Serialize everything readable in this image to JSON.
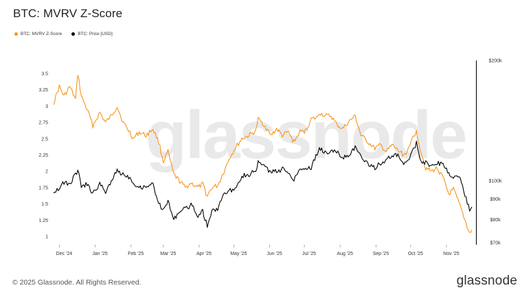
{
  "title": "BTC: MVRV Z-Score",
  "watermark": "glassnode",
  "footer": {
    "copyright": "© 2025 Glassnode. All Rights Reserved.",
    "logo": "glassnode"
  },
  "legend": [
    {
      "label": "BTC: MVRV Z-Score",
      "color": "#f7931a"
    },
    {
      "label": "BTC: Price [USD]",
      "color": "#000000"
    }
  ],
  "chart_data": {
    "type": "line",
    "title": "BTC: MVRV Z-Score",
    "x_tick_labels": [
      "Dec '24",
      "Jan '25",
      "Feb '25",
      "Mar '25",
      "Apr '25",
      "May '25",
      "Jun '25",
      "Jul '25",
      "Aug '25",
      "Sep '25",
      "Oct '25",
      "Nov '25"
    ],
    "y_left": {
      "ticks": [
        "3.5",
        "3.25",
        "3",
        "2.75",
        "2.5",
        "2.25",
        "2",
        "1.75",
        "1.5",
        "1.25",
        "1"
      ],
      "scale": "linear"
    },
    "y_right": {
      "ticks": [
        "$200k",
        "$100k",
        "$90k",
        "$80k",
        "$70k"
      ],
      "scale": "log"
    },
    "grid": false,
    "legend_position": "top-left",
    "series": [
      {
        "name": "BTC: MVRV Z-Score",
        "axis": "left",
        "color": "#f7931a",
        "x": [
          "2024-11-26",
          "2024-12-01",
          "2024-12-05",
          "2024-12-10",
          "2024-12-15",
          "2024-12-17",
          "2024-12-20",
          "2024-12-25",
          "2024-12-30",
          "2025-01-05",
          "2025-01-10",
          "2025-01-15",
          "2025-01-20",
          "2025-01-25",
          "2025-01-31",
          "2025-02-03",
          "2025-02-08",
          "2025-02-14",
          "2025-02-20",
          "2025-02-25",
          "2025-03-01",
          "2025-03-05",
          "2025-03-10",
          "2025-03-15",
          "2025-03-20",
          "2025-03-25",
          "2025-03-31",
          "2025-04-04",
          "2025-04-08",
          "2025-04-12",
          "2025-04-17",
          "2025-04-22",
          "2025-04-27",
          "2025-05-02",
          "2025-05-08",
          "2025-05-14",
          "2025-05-20",
          "2025-05-22",
          "2025-05-27",
          "2025-06-02",
          "2025-06-07",
          "2025-06-12",
          "2025-06-17",
          "2025-06-22",
          "2025-06-27",
          "2025-07-02",
          "2025-07-07",
          "2025-07-12",
          "2025-07-14",
          "2025-07-19",
          "2025-07-24",
          "2025-07-29",
          "2025-08-03",
          "2025-08-08",
          "2025-08-14",
          "2025-08-19",
          "2025-08-25",
          "2025-08-31",
          "2025-09-05",
          "2025-09-10",
          "2025-09-15",
          "2025-09-20",
          "2025-09-25",
          "2025-09-30",
          "2025-10-03",
          "2025-10-06",
          "2025-10-10",
          "2025-10-14",
          "2025-10-19",
          "2025-10-24",
          "2025-10-29",
          "2025-11-03",
          "2025-11-07",
          "2025-11-12",
          "2025-11-17",
          "2025-11-21",
          "2025-11-23"
        ],
        "y": [
          3.05,
          3.3,
          3.15,
          3.3,
          3.1,
          3.5,
          3.15,
          2.95,
          2.7,
          2.9,
          2.75,
          2.85,
          3.0,
          2.75,
          2.6,
          2.5,
          2.6,
          2.55,
          2.65,
          2.45,
          2.15,
          2.3,
          1.95,
          1.85,
          1.75,
          1.82,
          1.75,
          1.8,
          1.62,
          1.75,
          1.78,
          1.98,
          2.2,
          2.35,
          2.5,
          2.55,
          2.62,
          2.8,
          2.72,
          2.55,
          2.65,
          2.55,
          2.6,
          2.45,
          2.6,
          2.62,
          2.8,
          2.82,
          2.9,
          2.85,
          2.85,
          2.72,
          2.65,
          2.75,
          2.85,
          2.55,
          2.45,
          2.35,
          2.4,
          2.3,
          2.4,
          2.32,
          2.25,
          2.35,
          2.55,
          2.6,
          2.3,
          2.05,
          2.0,
          2.05,
          1.9,
          1.65,
          1.72,
          1.5,
          1.25,
          1.05,
          1.1
        ]
      },
      {
        "name": "BTC: Price [USD]",
        "axis": "right",
        "color": "#000000",
        "x": [
          "2024-11-26",
          "2024-12-01",
          "2024-12-05",
          "2024-12-10",
          "2024-12-15",
          "2024-12-17",
          "2024-12-20",
          "2024-12-25",
          "2024-12-30",
          "2025-01-05",
          "2025-01-10",
          "2025-01-15",
          "2025-01-20",
          "2025-01-25",
          "2025-01-31",
          "2025-02-03",
          "2025-02-08",
          "2025-02-14",
          "2025-02-20",
          "2025-02-25",
          "2025-03-01",
          "2025-03-05",
          "2025-03-10",
          "2025-03-15",
          "2025-03-20",
          "2025-03-25",
          "2025-03-31",
          "2025-04-04",
          "2025-04-08",
          "2025-04-12",
          "2025-04-17",
          "2025-04-22",
          "2025-04-27",
          "2025-05-02",
          "2025-05-08",
          "2025-05-14",
          "2025-05-20",
          "2025-05-22",
          "2025-05-27",
          "2025-06-02",
          "2025-06-07",
          "2025-06-12",
          "2025-06-17",
          "2025-06-22",
          "2025-06-27",
          "2025-07-02",
          "2025-07-07",
          "2025-07-12",
          "2025-07-14",
          "2025-07-19",
          "2025-07-24",
          "2025-07-29",
          "2025-08-03",
          "2025-08-08",
          "2025-08-14",
          "2025-08-19",
          "2025-08-25",
          "2025-08-31",
          "2025-09-05",
          "2025-09-10",
          "2025-09-15",
          "2025-09-20",
          "2025-09-25",
          "2025-09-30",
          "2025-10-03",
          "2025-10-06",
          "2025-10-10",
          "2025-10-14",
          "2025-10-19",
          "2025-10-24",
          "2025-10-29",
          "2025-11-03",
          "2025-11-07",
          "2025-11-12",
          "2025-11-17",
          "2025-11-21",
          "2025-11-23"
        ],
        "y": [
          94000,
          96000,
          99000,
          98000,
          104000,
          106000,
          97000,
          98000,
          93000,
          98000,
          94000,
          100000,
          106000,
          104000,
          102000,
          99000,
          96000,
          97000,
          98000,
          88000,
          84000,
          89000,
          80000,
          84000,
          85000,
          87000,
          82000,
          84000,
          77000,
          84000,
          85000,
          93000,
          94000,
          96000,
          103000,
          103500,
          106000,
          111000,
          109000,
          105000,
          105500,
          107000,
          105000,
          101000,
          107000,
          107500,
          108000,
          117000,
          120000,
          118000,
          118000,
          118500,
          114000,
          116000,
          121000,
          115000,
          110000,
          108000,
          110500,
          113000,
          115000,
          116000,
          109000,
          114000,
          120000,
          124000,
          112000,
          111000,
          108000,
          111000,
          110000,
          104000,
          102000,
          103000,
          92000,
          85000,
          86000
        ]
      }
    ]
  }
}
